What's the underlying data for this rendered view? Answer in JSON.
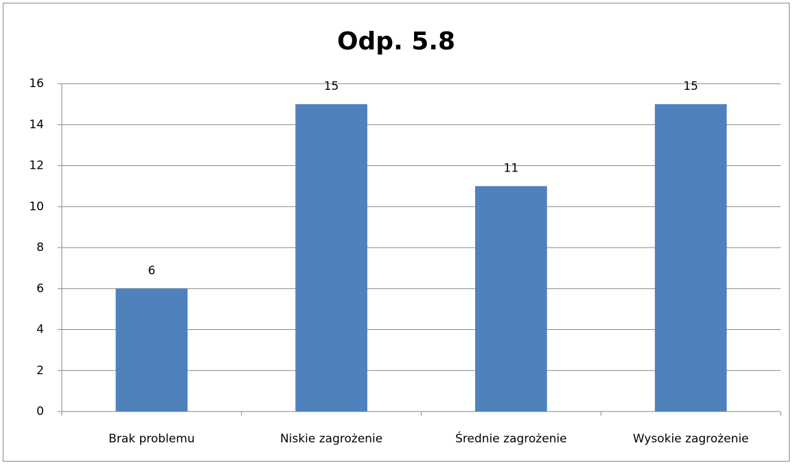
{
  "chart_data": {
    "type": "bar",
    "title": "Odp. 5.8",
    "categories": [
      "Brak problemu",
      "Niskie zagrożenie",
      "Średnie zagrożenie",
      "Wysokie zagrożenie"
    ],
    "values": [
      6,
      15,
      11,
      15
    ],
    "color": "#4f81bd",
    "ylim": [
      0,
      16
    ],
    "yticks": [
      0,
      2,
      4,
      6,
      8,
      10,
      12,
      14,
      16
    ],
    "grid": true,
    "data_labels": true
  }
}
